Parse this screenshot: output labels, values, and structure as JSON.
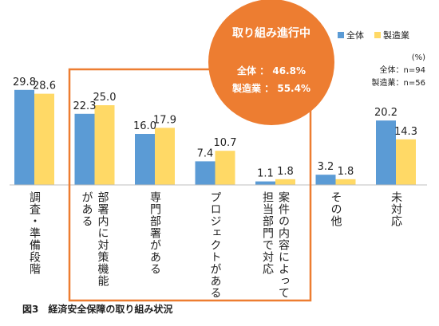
{
  "chart_data": {
    "type": "bar",
    "categories": [
      "調査・準備段階",
      "部署内に対策機能がある",
      "専門部署がある",
      "プロジェクトがある",
      "案件の内容によって担当部門で対応",
      "その他",
      "未対応"
    ],
    "category_label_columns": [
      [
        "調査・準備段階"
      ],
      [
        "部署内に対策機能",
        "がある"
      ],
      [
        "専門部署がある"
      ],
      [
        "プロジェクトがある"
      ],
      [
        "案件の内容によって",
        "担当部門で対応"
      ],
      [
        "その他"
      ],
      [
        "未対応"
      ]
    ],
    "series": [
      {
        "name": "全体",
        "values": [
          29.8,
          22.3,
          16.0,
          7.4,
          1.1,
          3.2,
          20.2
        ],
        "labels": [
          "29.8",
          "22.3",
          "16.0",
          "7.4",
          "1.1",
          "3.2",
          "20.2"
        ],
        "color": "#5b9bd5"
      },
      {
        "name": "製造業",
        "values": [
          28.6,
          25.0,
          17.9,
          10.7,
          1.8,
          1.8,
          14.3
        ],
        "labels": [
          "28.6",
          "25.0",
          "17.9",
          "10.7",
          "1.8",
          "1.8",
          "14.3"
        ],
        "color": "#ffd966"
      }
    ],
    "ylim": [
      0,
      35
    ],
    "unit": "(%)",
    "sample_sizes": [
      "全体：n=94",
      "製造業：n=56"
    ],
    "highlight": {
      "title": "取り組み進行中",
      "lines": [
        "全体 ： 46.8%",
        "製造業 ： 55.4%"
      ],
      "circle_color": "#ed7d31",
      "box_color": "#ed7d31",
      "covers_categories": [
        1,
        4
      ]
    },
    "legend_position": "top-right",
    "caption": "図3　経済安全保障の取り組み状況"
  }
}
